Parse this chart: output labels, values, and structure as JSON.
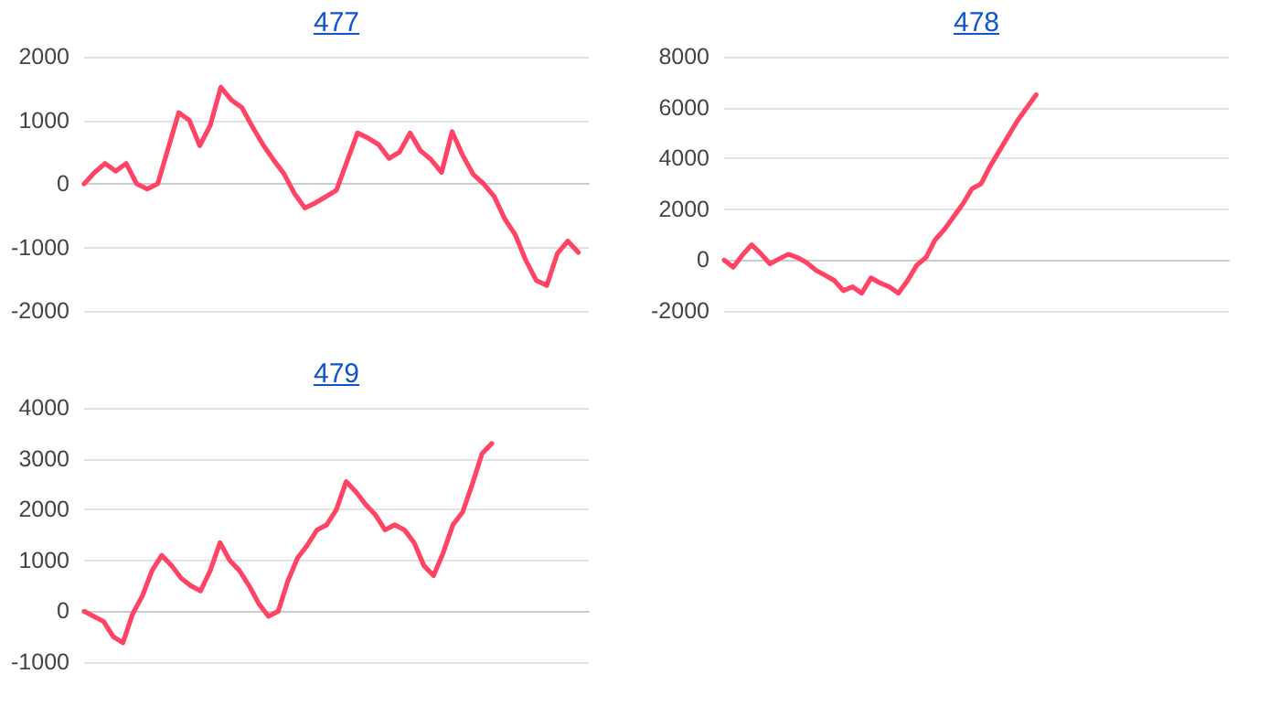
{
  "chart_data": [
    {
      "type": "line",
      "title": "477",
      "categories": [
        null,
        null,
        null,
        null,
        null,
        null,
        null,
        null,
        null,
        null,
        null,
        null,
        null,
        null,
        null,
        null,
        null,
        null,
        null,
        null,
        null,
        null,
        null,
        null,
        null,
        null,
        null,
        null,
        null,
        null,
        null,
        null,
        null,
        null,
        null,
        null,
        null,
        null,
        null,
        null,
        null,
        null,
        null,
        null,
        null,
        null,
        null,
        null,
        null
      ],
      "series": [
        {
          "color": "#ff4466",
          "values": [
            0,
            180,
            320,
            200,
            320,
            0,
            -80,
            0,
            560,
            1120,
            1000,
            600,
            920,
            1520,
            1320,
            1200,
            900,
            620,
            380,
            160,
            -150,
            -380,
            -300,
            -200,
            -100,
            350,
            800,
            720,
            620,
            400,
            500,
            800,
            520,
            380,
            180,
            820,
            450,
            150,
            0,
            -200,
            -550,
            -800,
            -1200,
            -1520,
            -1600,
            -1100,
            -900,
            -1080,
            null
          ]
        }
      ],
      "ylim": [
        -2000,
        2000
      ],
      "yticks": [
        -2000,
        -1000,
        0,
        1000,
        2000
      ],
      "grid": "y",
      "tick_labels": "y"
    },
    {
      "type": "line",
      "title": "478",
      "categories": [
        null,
        null,
        null,
        null,
        null,
        null,
        null,
        null,
        null,
        null,
        null,
        null,
        null,
        null,
        null,
        null,
        null,
        null,
        null,
        null,
        null,
        null,
        null,
        null,
        null,
        null,
        null,
        null,
        null,
        null,
        null,
        null,
        null,
        null,
        null,
        null,
        null,
        null,
        null,
        null,
        null,
        null,
        null,
        null,
        null,
        null,
        null,
        null,
        null,
        null,
        null,
        null,
        null,
        null,
        null,
        null
      ],
      "series": [
        {
          "color": "#ff4466",
          "values": [
            0,
            -280,
            200,
            600,
            250,
            -150,
            50,
            230,
            100,
            -100,
            -400,
            -600,
            -800,
            -1200,
            -1050,
            -1300,
            -700,
            -900,
            -1050,
            -1300,
            -800,
            -200,
            100,
            800,
            1200,
            1700,
            2200,
            2800,
            3000,
            3700,
            4300,
            4900,
            5500,
            6000,
            6500,
            null,
            null,
            null,
            null,
            null,
            null,
            null,
            null,
            null,
            null,
            null,
            null,
            null,
            null,
            null,
            null,
            null,
            null,
            null,
            null,
            null
          ]
        }
      ],
      "ylim": [
        -2000,
        8000
      ],
      "yticks": [
        -2000,
        0,
        2000,
        4000,
        6000,
        8000
      ],
      "grid": "y",
      "tick_labels": "y"
    },
    {
      "type": "line",
      "title": "479",
      "categories": [
        null,
        null,
        null,
        null,
        null,
        null,
        null,
        null,
        null,
        null,
        null,
        null,
        null,
        null,
        null,
        null,
        null,
        null,
        null,
        null,
        null,
        null,
        null,
        null,
        null,
        null,
        null,
        null,
        null,
        null,
        null,
        null,
        null,
        null,
        null,
        null,
        null,
        null,
        null,
        null,
        null,
        null,
        null,
        null,
        null,
        null,
        null,
        null,
        null,
        null,
        null,
        null,
        null
      ],
      "series": [
        {
          "color": "#ff4466",
          "values": [
            0,
            -100,
            -200,
            -500,
            -620,
            -50,
            300,
            800,
            1100,
            900,
            650,
            500,
            400,
            800,
            1350,
            1000,
            800,
            500,
            150,
            -100,
            0,
            600,
            1050,
            1300,
            1600,
            1700,
            2000,
            2550,
            2350,
            2100,
            1900,
            1600,
            1700,
            1600,
            1350,
            900,
            700,
            1150,
            1700,
            1950,
            2500,
            3100,
            3300,
            null,
            null,
            null,
            null,
            null,
            null,
            null,
            null,
            null,
            null
          ]
        }
      ],
      "ylim": [
        -1000,
        4000
      ],
      "yticks": [
        -1000,
        0,
        1000,
        2000,
        3000,
        4000
      ],
      "grid": "y",
      "tick_labels": "y"
    }
  ]
}
